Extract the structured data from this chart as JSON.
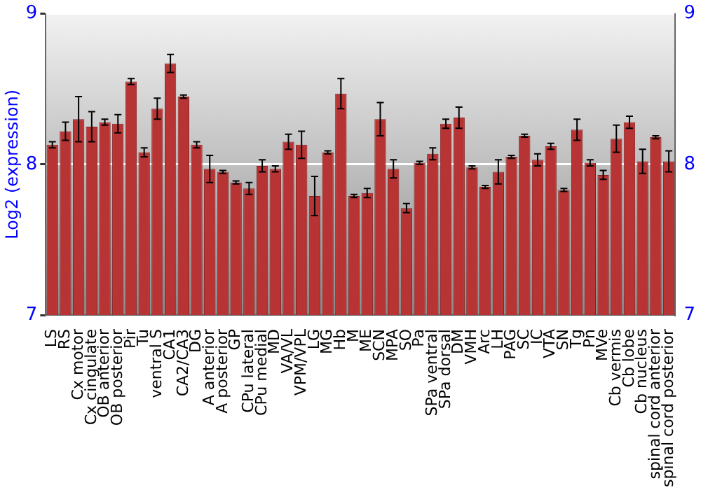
{
  "chart_data": {
    "type": "bar",
    "ylabel": "Log2 (expression)",
    "categories": [
      "LS",
      "RS",
      "Cx motor",
      "Cx cingulate",
      "OB anterior",
      "OB posterior",
      "Pir",
      "Tu",
      "ventral S",
      "CA1",
      "CA2/CA3",
      "DG",
      "A anterior",
      "A posterior",
      "GP",
      "CPu lateral",
      "CPu medial",
      "MD",
      "VA/VL",
      "VPM/VPL",
      "LG",
      "MG",
      "Hb",
      "M",
      "ME",
      "SCN",
      "MPA",
      "SO",
      "Pa",
      "SPa ventral",
      "SPa dorsal",
      "DM",
      "VMH",
      "Arc",
      "LH",
      "PAG",
      "SC",
      "IC",
      "VTA",
      "SN",
      "Tg",
      "Pn",
      "MVe",
      "Cb vermis",
      "Cb lobe",
      "Cb nucleus",
      "spinal cord anterior",
      "spinal cord posterior"
    ],
    "values": [
      8.13,
      8.22,
      8.3,
      8.25,
      8.28,
      8.27,
      8.55,
      8.08,
      8.37,
      8.67,
      8.45,
      8.13,
      7.97,
      7.95,
      7.88,
      7.84,
      7.99,
      7.97,
      8.15,
      8.13,
      7.79,
      8.08,
      8.47,
      7.79,
      7.81,
      8.3,
      7.97,
      7.71,
      8.01,
      8.07,
      8.27,
      8.31,
      7.98,
      7.85,
      7.95,
      8.05,
      8.19,
      8.03,
      8.12,
      7.83,
      8.23,
      8.01,
      7.93,
      8.17,
      8.28,
      8.02,
      8.18,
      8.02
    ],
    "errors": [
      0.02,
      0.06,
      0.15,
      0.1,
      0.02,
      0.06,
      0.02,
      0.03,
      0.07,
      0.06,
      0.01,
      0.02,
      0.09,
      0.01,
      0.01,
      0.04,
      0.04,
      0.02,
      0.05,
      0.09,
      0.13,
      0.01,
      0.1,
      0.01,
      0.03,
      0.11,
      0.06,
      0.03,
      0.01,
      0.04,
      0.03,
      0.07,
      0.01,
      0.01,
      0.08,
      0.01,
      0.01,
      0.04,
      0.02,
      0.01,
      0.07,
      0.02,
      0.03,
      0.09,
      0.04,
      0.08,
      0.01,
      0.07
    ],
    "color": "#b83434",
    "ylim": [
      7,
      9
    ],
    "yticks": [
      7,
      8,
      9
    ],
    "y2lim": [
      7,
      9
    ],
    "y2ticks": [
      7,
      8,
      9
    ],
    "grid": "y"
  }
}
